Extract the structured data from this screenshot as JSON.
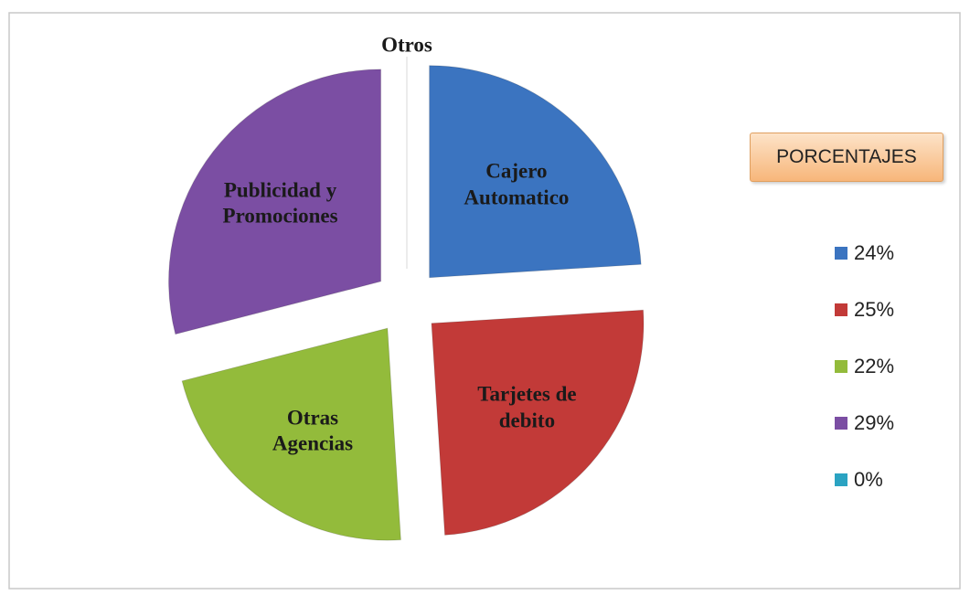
{
  "chart_data": {
    "type": "pie",
    "categories": [
      "Cajero Automatico",
      "Tarjetes de debito",
      "Otras Agencias",
      "Publicidad y Promociones",
      "Otros"
    ],
    "values": [
      24,
      25,
      22,
      29,
      0
    ],
    "value_labels": [
      "24%",
      "25%",
      "22%",
      "29%",
      "0%"
    ],
    "colors": [
      "#3b74c0",
      "#c23a38",
      "#93bb3b",
      "#7b4ea3",
      "#2ba3c2"
    ],
    "legend_title": "PORCENTAJES",
    "legend": "right"
  }
}
